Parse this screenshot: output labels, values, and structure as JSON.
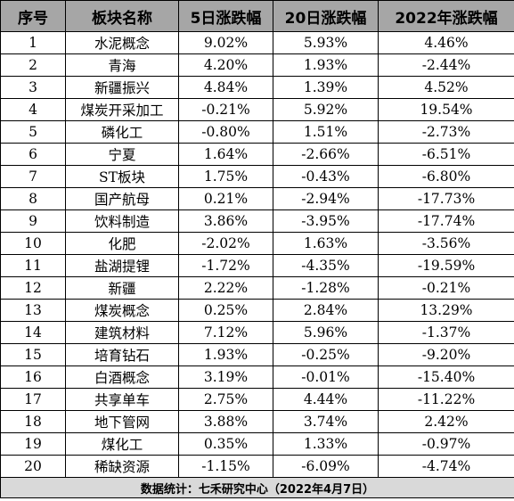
{
  "headers": [
    "序号",
    "板块名称",
    "5日涨跌幅",
    "20日涨跌幅",
    "2022年涨跌幅"
  ],
  "rows": [
    [
      "1",
      "水泥概念",
      "9.02%",
      "5.93%",
      "4.46%"
    ],
    [
      "2",
      "青海",
      "4.20%",
      "1.93%",
      "-2.44%"
    ],
    [
      "3",
      "新疆振兴",
      "4.84%",
      "1.39%",
      "4.52%"
    ],
    [
      "4",
      "煤炭开采加工",
      "-0.21%",
      "5.92%",
      "19.54%"
    ],
    [
      "5",
      "磷化工",
      "-0.80%",
      "1.51%",
      "-2.73%"
    ],
    [
      "6",
      "宁夏",
      "1.64%",
      "-2.66%",
      "-6.51%"
    ],
    [
      "7",
      "ST板块",
      "1.75%",
      "-0.43%",
      "-6.80%"
    ],
    [
      "8",
      "国产航母",
      "0.21%",
      "-2.94%",
      "-17.73%"
    ],
    [
      "9",
      "饮料制造",
      "3.86%",
      "-3.95%",
      "-17.74%"
    ],
    [
      "10",
      "化肥",
      "-2.02%",
      "1.63%",
      "-3.56%"
    ],
    [
      "11",
      "盐湖提锂",
      "-1.72%",
      "-4.35%",
      "-19.59%"
    ],
    [
      "12",
      "新疆",
      "2.22%",
      "-1.28%",
      "-0.21%"
    ],
    [
      "13",
      "煤炭概念",
      "0.25%",
      "2.84%",
      "13.29%"
    ],
    [
      "14",
      "建筑材料",
      "7.12%",
      "5.96%",
      "-1.37%"
    ],
    [
      "15",
      "培育钻石",
      "1.93%",
      "-0.25%",
      "-9.20%"
    ],
    [
      "16",
      "白酒概念",
      "3.19%",
      "-0.01%",
      "-15.40%"
    ],
    [
      "17",
      "共享单车",
      "2.75%",
      "4.44%",
      "-11.22%"
    ],
    [
      "18",
      "地下管网",
      "3.88%",
      "3.74%",
      "2.42%"
    ],
    [
      "19",
      "煤化工",
      "0.35%",
      "1.33%",
      "-0.97%"
    ],
    [
      "20",
      "稀缺资源",
      "-1.15%",
      "-6.09%",
      "-4.74%"
    ]
  ],
  "footer": "数据统计：七禾研究中心（2022年4月7日）",
  "colors": {
    "header_bg": "#a6a6a6",
    "footer_bg": "#d9d9d9",
    "border": "#000000"
  }
}
